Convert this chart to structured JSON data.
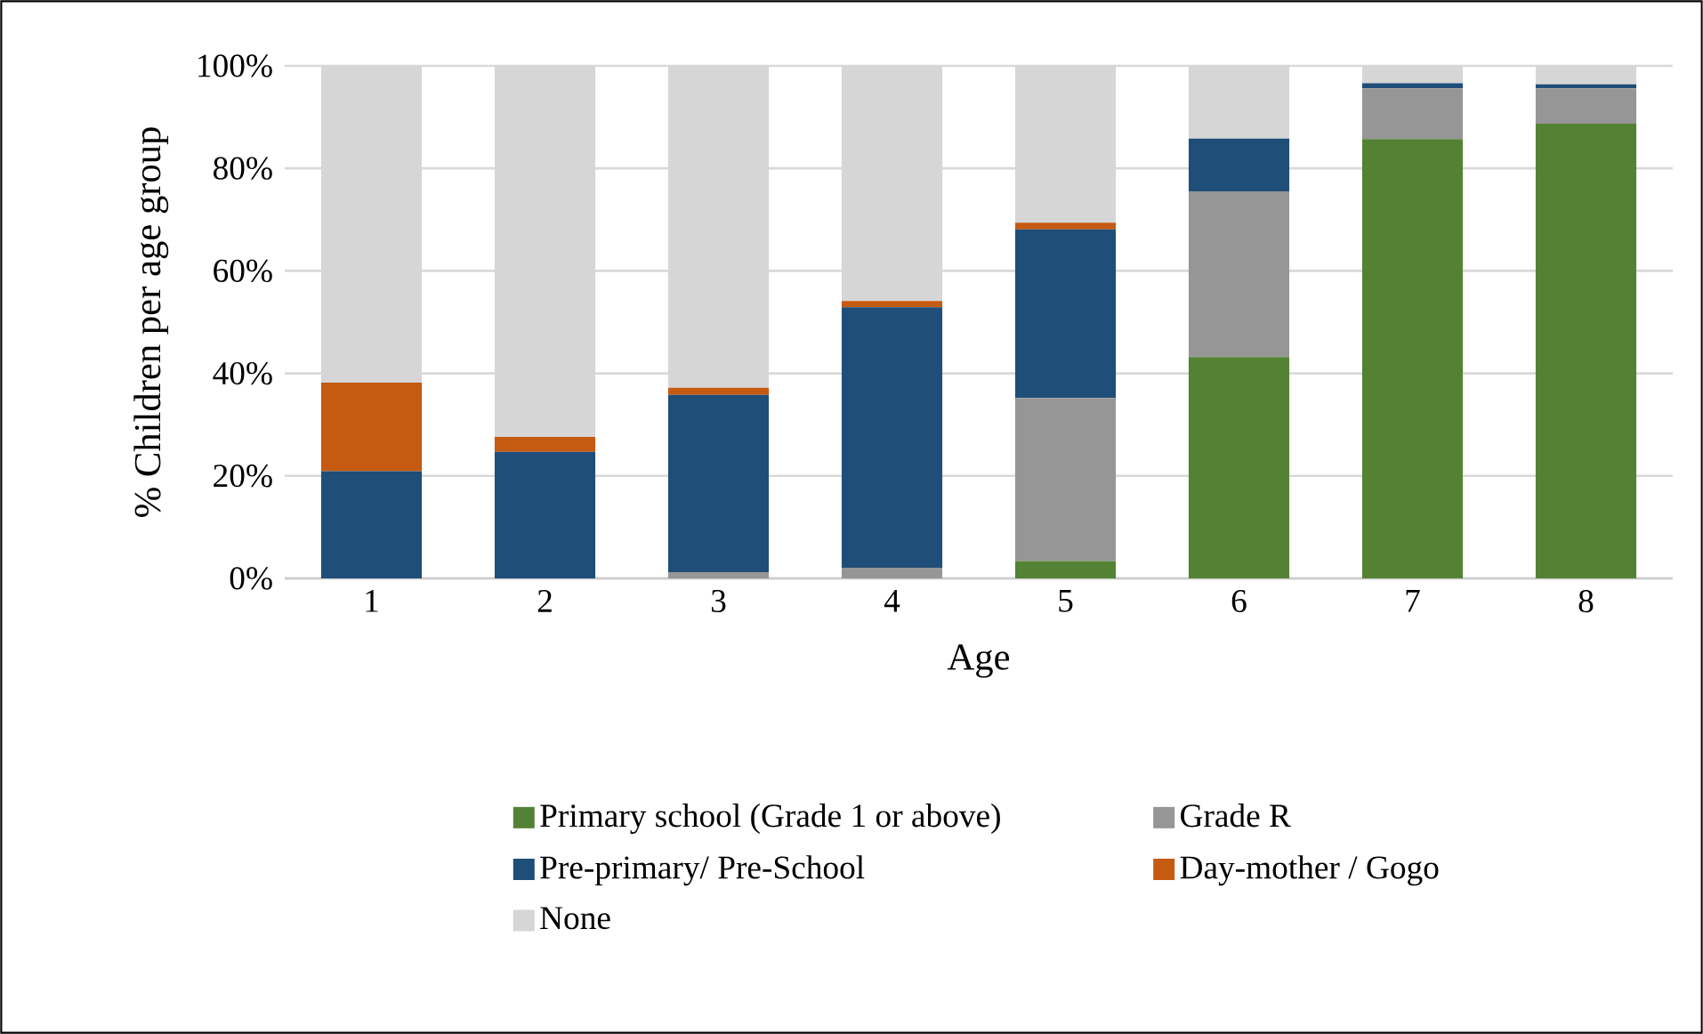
{
  "chart_data": {
    "type": "bar",
    "stacked": true,
    "xlabel": "Age",
    "ylabel": "% Children per age group",
    "categories": [
      "1",
      "2",
      "3",
      "4",
      "5",
      "6",
      "7",
      "8"
    ],
    "series": [
      {
        "name": "Primary school (Grade 1 or above)",
        "color": "#548235",
        "values": [
          0,
          0,
          0,
          0,
          3.4,
          43.2,
          85.7,
          88.7
        ]
      },
      {
        "name": "Grade R",
        "color": "#969696",
        "values": [
          0,
          0,
          1.2,
          2.1,
          31.8,
          32.3,
          9.9,
          6.9
        ]
      },
      {
        "name": "Pre-primary/ Pre-School",
        "color": "#1f4e79",
        "values": [
          20.9,
          24.7,
          34.6,
          50.8,
          32.9,
          10.3,
          1.0,
          0.8
        ]
      },
      {
        "name": "Day-mother / Gogo",
        "color": "#c55a11",
        "values": [
          17.3,
          2.9,
          1.4,
          1.2,
          1.3,
          0,
          0,
          0
        ]
      },
      {
        "name": "None",
        "color": "#d6d6d6",
        "values": [
          61.7,
          72.4,
          62.8,
          45.9,
          30.6,
          14.2,
          3.4,
          3.6
        ]
      }
    ],
    "ylim": [
      0,
      100
    ],
    "yticks": [
      {
        "value": 0,
        "label": "0%"
      },
      {
        "value": 20,
        "label": "20%"
      },
      {
        "value": 40,
        "label": "40%"
      },
      {
        "value": 60,
        "label": "60%"
      },
      {
        "value": 80,
        "label": "80%"
      },
      {
        "value": 100,
        "label": "100%"
      }
    ],
    "grid": "y",
    "legend": "bottom"
  }
}
